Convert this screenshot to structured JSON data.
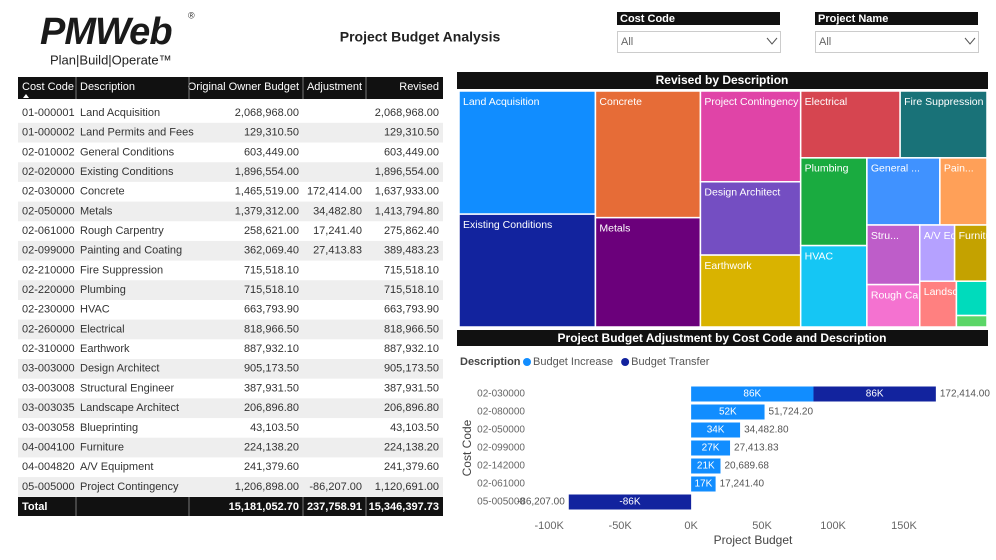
{
  "header": {
    "logo": "PMWeb",
    "registered": "®",
    "tagline": "Plan|Build|Operate™",
    "title": "Project Budget Analysis"
  },
  "filters": [
    {
      "label": "Cost Code",
      "value": "All"
    },
    {
      "label": "Project Name",
      "value": "All"
    }
  ],
  "table": {
    "columns": [
      "Cost Code",
      "Description",
      "Original Owner Budget",
      "Adjustment",
      "Revised"
    ],
    "rows": [
      [
        "01-000001",
        "Land Acquisition",
        "2,068,968.00",
        null,
        "2,068,968.00"
      ],
      [
        "01-000002",
        "Land Permits and Fees",
        "129,310.50",
        null,
        "129,310.50"
      ],
      [
        "02-010002",
        "General Conditions",
        "603,449.00",
        null,
        "603,449.00"
      ],
      [
        "02-020000",
        "Existing Conditions",
        "1,896,554.00",
        null,
        "1,896,554.00"
      ],
      [
        "02-030000",
        "Concrete",
        "1,465,519.00",
        "172,414.00",
        "1,637,933.00"
      ],
      [
        "02-050000",
        "Metals",
        "1,379,312.00",
        "34,482.80",
        "1,413,794.80"
      ],
      [
        "02-061000",
        "Rough Carpentry",
        "258,621.00",
        "17,241.40",
        "275,862.40"
      ],
      [
        "02-099000",
        "Painting and Coating",
        "362,069.40",
        "27,413.83",
        "389,483.23"
      ],
      [
        "02-210000",
        "Fire Suppression",
        "715,518.10",
        null,
        "715,518.10"
      ],
      [
        "02-220000",
        "Plumbing",
        "715,518.10",
        null,
        "715,518.10"
      ],
      [
        "02-230000",
        "HVAC",
        "663,793.90",
        null,
        "663,793.90"
      ],
      [
        "02-260000",
        "Electrical",
        "818,966.50",
        null,
        "818,966.50"
      ],
      [
        "02-310000",
        "Earthwork",
        "887,932.10",
        null,
        "887,932.10"
      ],
      [
        "03-003000",
        "Design Architect",
        "905,173.50",
        null,
        "905,173.50"
      ],
      [
        "03-003008",
        "Structural Engineer",
        "387,931.50",
        null,
        "387,931.50"
      ],
      [
        "03-003035",
        "Landscape Architect",
        "206,896.80",
        null,
        "206,896.80"
      ],
      [
        "03-003058",
        "Blueprinting",
        "43,103.50",
        null,
        "43,103.50"
      ],
      [
        "04-004100",
        "Furniture",
        "224,138.20",
        null,
        "224,138.20"
      ],
      [
        "04-004820",
        "A/V Equipment",
        "241,379.60",
        null,
        "241,379.60"
      ],
      [
        "05-005000",
        "Project Contingency",
        "1,206,898.00",
        "-86,207.00",
        "1,120,691.00"
      ]
    ],
    "total": [
      "Total",
      null,
      "15,181,052.70",
      "237,758.91",
      "15,346,397.73"
    ]
  },
  "chart_data": [
    {
      "type": "treemap",
      "title": "Revised by Description",
      "categories": [
        "Land Acquisition",
        "Existing Conditions",
        "Concrete",
        "Metals",
        "Project Contingency",
        "Design Architect",
        "Earthwork",
        "Electrical",
        "Fire Suppression",
        "Plumbing",
        "HVAC",
        "General ...",
        "Pain...",
        "Stru...",
        "Rough Ca...",
        "A/V Equi...",
        "Furniture",
        "Landsc...",
        null,
        null
      ],
      "values": [
        2068968,
        1896554,
        1637933,
        1413794.8,
        1120691,
        905173.5,
        887932.1,
        818966.5,
        715518.1,
        715518.1,
        663793.9,
        603449,
        389483.23,
        387931.5,
        275862.4,
        241379.6,
        224138.2,
        206896.8,
        129310.5,
        43103.5
      ],
      "colors": [
        "#118DFF",
        "#12239E",
        "#E66C37",
        "#6B007B",
        "#E044A7",
        "#744EC2",
        "#D9B300",
        "#D64550",
        "#197278",
        "#1AAB40",
        "#15C6F4",
        "#4092FF",
        "#FFA058",
        "#BE5DC9",
        "#F472D0",
        "#B5A1FF",
        "#C4A200",
        "#FF8080",
        "#00DBBC",
        "#5BD667"
      ]
    },
    {
      "type": "bar",
      "orientation": "horizontal",
      "stacked": true,
      "title": "Project Budget Adjustment by Cost Code and Description",
      "legend_title": "Description",
      "x_label": "Project Budget",
      "y_label": "Cost Code",
      "categories": [
        "02-030000",
        "02-080000",
        "02-050000",
        "02-099000",
        "02-142000",
        "02-061000",
        "05-005000"
      ],
      "series": [
        {
          "name": "Budget Increase",
          "color": "#118DFF",
          "values": [
            86207,
            51724.2,
            34482.8,
            27413.83,
            20689.68,
            17241.4,
            null
          ],
          "value_labels": [
            "86K",
            "52K",
            "34K",
            "27K",
            "21K",
            "17K",
            null
          ]
        },
        {
          "name": "Budget Transfer",
          "color": "#12239E",
          "values": [
            86207,
            null,
            null,
            null,
            null,
            null,
            -86207
          ],
          "value_labels": [
            "86K",
            null,
            null,
            null,
            null,
            null,
            "-86K"
          ]
        }
      ],
      "totals": [
        172414,
        51724.2,
        34482.8,
        27413.83,
        20689.68,
        17241.4,
        -86207
      ],
      "total_labels": [
        "172,414.00",
        "51,724.20",
        "34,482.80",
        "27,413.83",
        "20,689.68",
        "17,241.40",
        "-86,207.00"
      ],
      "xlim": [
        -110000,
        200000
      ],
      "xticks": [
        {
          "value": -100000,
          "label": "-100K"
        },
        {
          "value": -50000,
          "label": "-50K"
        },
        {
          "value": 0,
          "label": "0K"
        },
        {
          "value": 50000,
          "label": "50K"
        },
        {
          "value": 100000,
          "label": "100K"
        },
        {
          "value": 150000,
          "label": "150K"
        }
      ]
    }
  ]
}
